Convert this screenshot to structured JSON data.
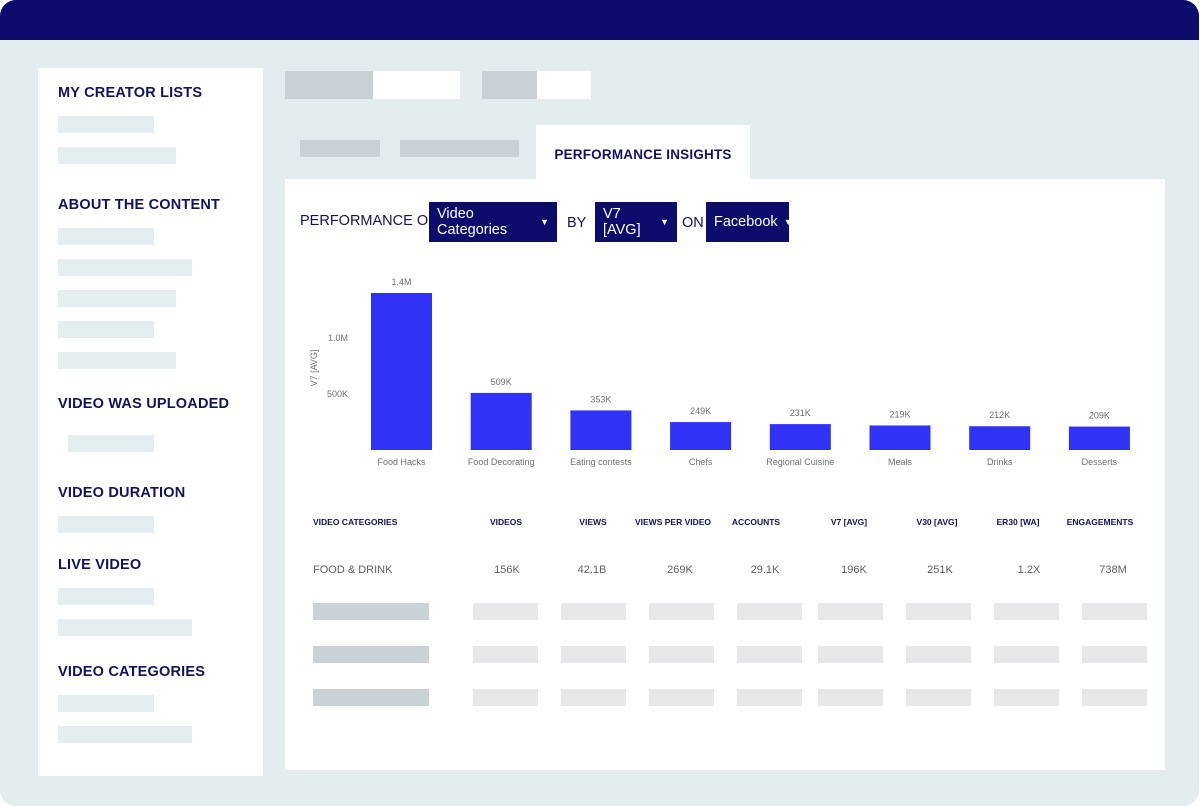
{
  "sidebar": {
    "headings": [
      "MY CREATOR LISTS",
      "ABOUT THE CONTENT",
      "VIDEO WAS UPLOADED",
      "VIDEO DURATION",
      "LIVE VIDEO",
      "VIDEO CATEGORIES"
    ]
  },
  "tabs": {
    "active_label": "PERFORMANCE INSIGHTS"
  },
  "filter": {
    "prefix": "PERFORMANCE OF",
    "category_value": "Video Categories",
    "by_label": "BY",
    "metric_value": "V7 [AVG]",
    "on_label": "ON",
    "platform_value": "Facebook"
  },
  "chart_data": {
    "type": "bar",
    "ylabel": "V7 [AVG]",
    "yticks": [
      {
        "value": 500000,
        "label": "500K"
      },
      {
        "value": 1000000,
        "label": "1.0M"
      }
    ],
    "categories": [
      "Food Hacks",
      "Food Decorating",
      "Eating contests",
      "Chefs",
      "Regional Cuisine",
      "Meals",
      "Drinks",
      "Desserts"
    ],
    "values": [
      1400000,
      509000,
      353000,
      249000,
      231000,
      219000,
      212000,
      209000
    ],
    "data_labels": [
      "1.4M",
      "509K",
      "353K",
      "249K",
      "231K",
      "219K",
      "212K",
      "209K"
    ],
    "bar_color": "#3033f5"
  },
  "table": {
    "columns": [
      "VIDEO CATEGORIES",
      "VIDEOS",
      "VIEWS",
      "VIEWS PER VIDEO",
      "ACCOUNTS",
      "V7 [AVG]",
      "V30 [AVG]",
      "ER30 [WA]",
      "ENGAGEMENTS"
    ],
    "row": [
      "FOOD & DRINK",
      "156K",
      "42.1B",
      "269K",
      "29.1K",
      "196K",
      "251K",
      "1.2X",
      "738M"
    ]
  },
  "colors": {
    "titlebar": "#0b0c6b",
    "accent": "#11135e",
    "bar": "#3033f5",
    "background": "#e3ecee"
  }
}
